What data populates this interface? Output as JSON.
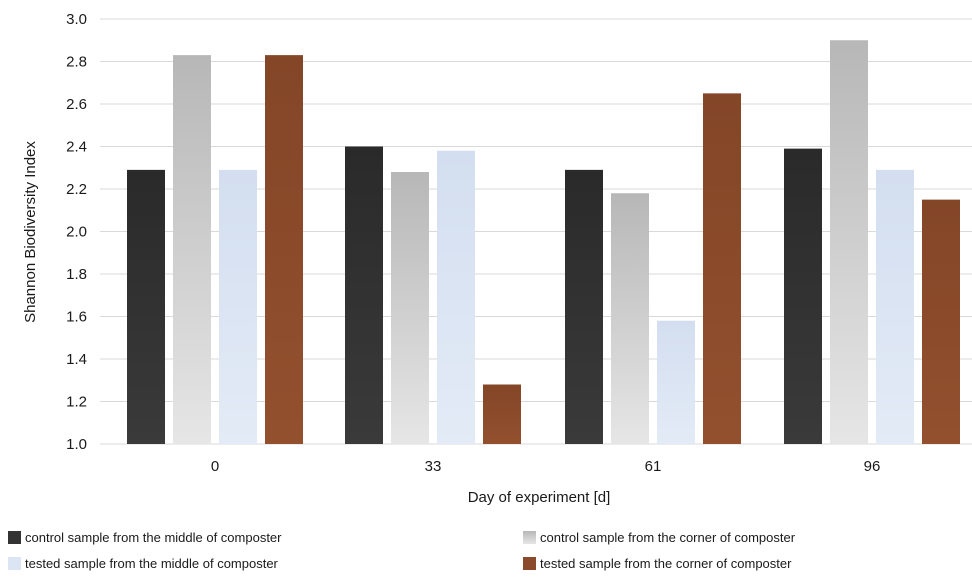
{
  "chart_data": {
    "type": "bar",
    "title": "",
    "xlabel": "Day of experiment [d]",
    "ylabel": "Shannon Biodiversity Index",
    "ylim": [
      1.0,
      3.0
    ],
    "yticks": [
      "1.0",
      "1.2",
      "1.4",
      "1.6",
      "1.8",
      "2.0",
      "2.2",
      "2.4",
      "2.6",
      "2.8",
      "3.0"
    ],
    "grid": true,
    "legend_position": "bottom",
    "categories": [
      "0",
      "33",
      "61",
      "96"
    ],
    "series": [
      {
        "name": "control sample from the middle of composter",
        "color": "#333333",
        "values": [
          2.29,
          2.4,
          2.29,
          2.39
        ]
      },
      {
        "name": "control sample from the corner of composter",
        "color": "#c4c4c4",
        "values": [
          2.83,
          2.28,
          2.18,
          2.9
        ]
      },
      {
        "name": "tested sample from the middle of composter",
        "color": "#dbe5f3",
        "values": [
          2.29,
          2.38,
          1.58,
          2.29
        ]
      },
      {
        "name": "tested sample from the corner of composter",
        "color": "#8b4a2b",
        "values": [
          2.83,
          1.28,
          2.65,
          2.15
        ]
      }
    ]
  }
}
